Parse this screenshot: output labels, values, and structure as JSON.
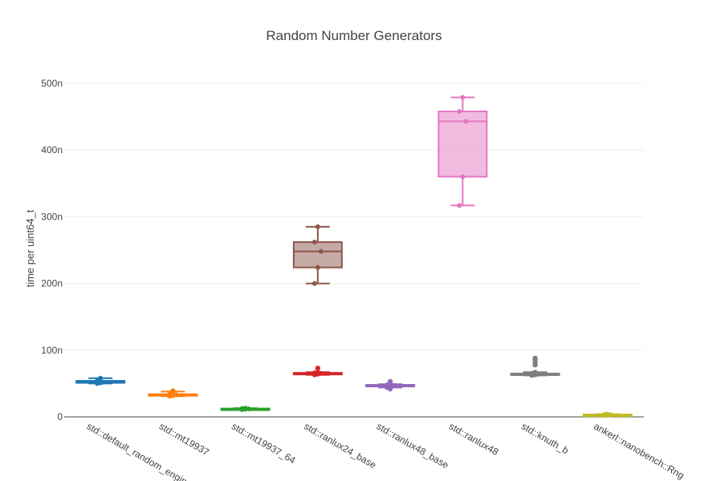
{
  "chart_data": {
    "type": "box",
    "title": "Random Number Generators",
    "xlabel": "",
    "ylabel": "time per uint64_t",
    "ylim": [
      0,
      500
    ],
    "y_tick_values": [
      0,
      100,
      200,
      300,
      400,
      500
    ],
    "y_tick_labels": [
      "0",
      "100n",
      "200n",
      "300n",
      "400n",
      "500n"
    ],
    "grid": "horizontal",
    "series": [
      {
        "category": "std::default_random_engine",
        "color": "#1f77b4",
        "min": 50,
        "q1": 51,
        "median": 52,
        "q3": 54,
        "max": 58,
        "outliers": []
      },
      {
        "category": "std::mt19937",
        "color": "#ff7f0e",
        "min": 31,
        "q1": 32,
        "median": 33,
        "q3": 34,
        "max": 38,
        "outliers": [
          39
        ]
      },
      {
        "category": "std::mt19937_64",
        "color": "#2ca02c",
        "min": 11,
        "q1": 11.5,
        "median": 12,
        "q3": 12.5,
        "max": 13,
        "outliers": []
      },
      {
        "category": "std::ranlux24_base",
        "color": "#d62728",
        "min": 63,
        "q1": 64,
        "median": 65,
        "q3": 66,
        "max": 67,
        "outliers": [
          73
        ]
      },
      {
        "category": "std::ranlux48_base",
        "color": "#9467bd",
        "min": 44,
        "q1": 46,
        "median": 47,
        "q3": 48,
        "max": 49,
        "outliers": [
          53,
          42
        ]
      },
      {
        "category": "std::ranlux48",
        "color": "#e377c2",
        "min": 317,
        "q1": 360,
        "median": 443,
        "q3": 458,
        "max": 479,
        "outliers": []
      },
      {
        "category": "std::knuth_b",
        "color": "#7f7f7f",
        "min": 62,
        "q1": 63,
        "median": 64,
        "q3": 65,
        "max": 67,
        "outliers": [
          78,
          82,
          86,
          88
        ]
      },
      {
        "category": "ankerl::nanobench::Rng",
        "color": "#bcbd22",
        "min": 2,
        "q1": 2.5,
        "median": 3,
        "q3": 3.5,
        "max": 4,
        "outliers": []
      }
    ],
    "extra_box": {
      "color": "#8c564b",
      "min": 200,
      "q1": 224,
      "median": 248,
      "q3": 262,
      "max": 285,
      "position_between": [
        "std::mt19937_64",
        "std::ranlux24_base"
      ]
    }
  }
}
